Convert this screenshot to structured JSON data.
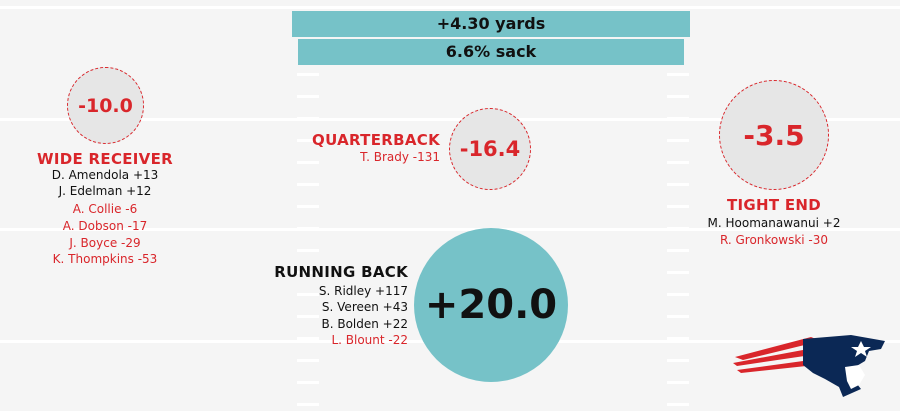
{
  "chart_data": {
    "type": "table",
    "summary": [
      {
        "label": "+4.30 yards",
        "value": 4.3,
        "unit": "yards"
      },
      {
        "label": "6.6% sack",
        "value": 6.6,
        "unit": "% sack"
      }
    ],
    "positions": [
      {
        "name": "WIDE RECEIVER",
        "value_label": "-10.0",
        "value": -10.0,
        "players": [
          {
            "label": "D. Amendola +13",
            "value": 13
          },
          {
            "label": "J. Edelman +12",
            "value": 12
          },
          {
            "label": "A. Collie -6",
            "value": -6
          },
          {
            "label": "A. Dobson -17",
            "value": -17
          },
          {
            "label": "J. Boyce -29",
            "value": -29
          },
          {
            "label": "K. Thompkins -53",
            "value": -53
          }
        ]
      },
      {
        "name": "QUARTERBACK",
        "value_label": "-16.4",
        "value": -16.4,
        "players": [
          {
            "label": "T. Brady -131",
            "value": -131
          }
        ]
      },
      {
        "name": "TIGHT END",
        "value_label": "-3.5",
        "value": -3.5,
        "players": [
          {
            "label": "M. Hoomanawanui +2",
            "value": 2
          },
          {
            "label": "R. Gronkowski -30",
            "value": -30
          }
        ]
      },
      {
        "name": "RUNNING BACK",
        "value_label": "+20.0",
        "value": 20.0,
        "players": [
          {
            "label": "S. Ridley +117",
            "value": 117
          },
          {
            "label": "S. Vereen +43",
            "value": 43
          },
          {
            "label": "B. Bolden +22",
            "value": 22
          },
          {
            "label": "L. Blount -22",
            "value": -22
          }
        ]
      }
    ],
    "colors": {
      "positive": "#76c2c8",
      "negative": "#d9262b",
      "circle_negative_fill": "#e6e6e6",
      "text": "#111111"
    }
  },
  "logo": {
    "name": "patriots-logo"
  }
}
